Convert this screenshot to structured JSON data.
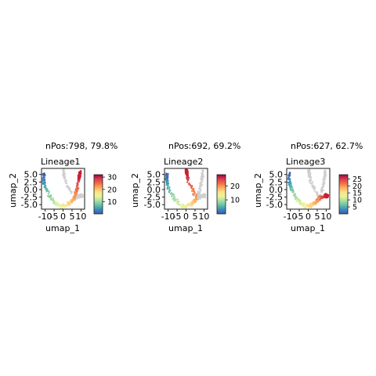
{
  "chart_data": [
    {
      "type": "scatter",
      "title": "nPos:798, 79.8%",
      "subtitle": "Lineage1",
      "xlabel": "umap_1",
      "ylabel": "umap_2",
      "xticks": [
        "-10",
        "-5",
        "0",
        "5",
        "10"
      ],
      "yticks": [
        "5.0",
        "2.5",
        "0.0",
        "-2.5",
        "-5.0"
      ],
      "xlim": [
        -12,
        12
      ],
      "ylim": [
        -6.5,
        7
      ],
      "colorbar": {
        "min": 0,
        "max": 32,
        "ticks": [
          10,
          20,
          30
        ]
      },
      "highlight_color": "#cc1f2f",
      "grey_color": "#cfcfcf",
      "shape": "lineage1"
    },
    {
      "type": "scatter",
      "title": "nPos:692, 69.2%",
      "subtitle": "Lineage2",
      "xlabel": "umap_1",
      "ylabel": "umap_2",
      "xticks": [
        "-10",
        "-5",
        "0",
        "5",
        "10"
      ],
      "yticks": [
        "5.0",
        "2.5",
        "0.0",
        "-2.5",
        "-5.0"
      ],
      "xlim": [
        -12,
        12
      ],
      "ylim": [
        -6.5,
        7
      ],
      "colorbar": {
        "min": 0,
        "max": 28,
        "ticks": [
          10,
          20
        ]
      },
      "highlight_color": "#cc1f2f",
      "grey_color": "#cfcfcf",
      "shape": "lineage2"
    },
    {
      "type": "scatter",
      "title": "nPos:627, 62.7%",
      "subtitle": "Lineage3",
      "xlabel": "umap_1",
      "ylabel": "umap_2",
      "xticks": [
        "-10",
        "-5",
        "0",
        "5",
        "10"
      ],
      "yticks": [
        "5.0",
        "2.5",
        "0.0",
        "-2.5",
        "-5.0"
      ],
      "xlim": [
        -12,
        12
      ],
      "ylim": [
        -6.5,
        7
      ],
      "colorbar": {
        "min": 0,
        "max": 28,
        "ticks": [
          5,
          10,
          15,
          20,
          25
        ]
      },
      "highlight_color": "#cc1f2f",
      "grey_color": "#cfcfcf",
      "shape": "lineage3"
    }
  ],
  "palette": [
    "#3d5aa8",
    "#3a8cbd",
    "#66c2a4",
    "#abdda4",
    "#e6f598",
    "#fee08b",
    "#fdae61",
    "#f46d43",
    "#d53e4f",
    "#9e0142"
  ]
}
